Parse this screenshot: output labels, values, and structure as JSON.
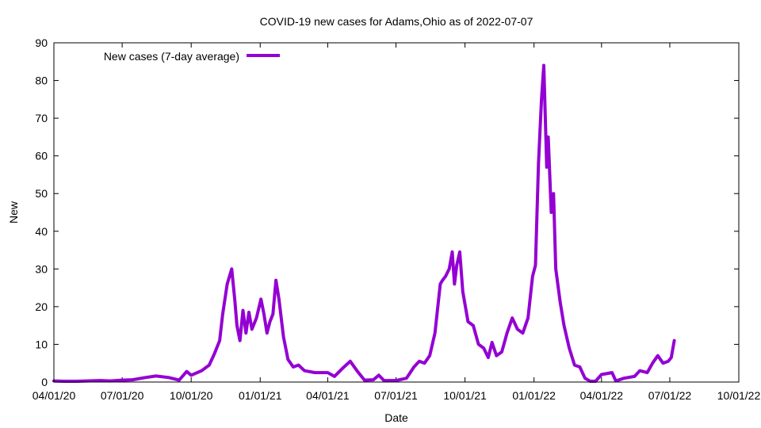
{
  "chart_data": {
    "type": "line",
    "title": "COVID-19 new cases for Adams,Ohio as of 2022-07-07",
    "xlabel": "Date",
    "ylabel": "New",
    "xlim": [
      "2020-04-01",
      "2022-10-01"
    ],
    "ylim": [
      0,
      90
    ],
    "x_ticks": [
      "2020-04-01",
      "2020-07-01",
      "2020-10-01",
      "2021-01-01",
      "2021-04-01",
      "2021-07-01",
      "2021-10-01",
      "2022-01-01",
      "2022-04-01",
      "2022-07-01",
      "2022-10-01"
    ],
    "x_tick_labels": [
      "04/01/20",
      "07/01/20",
      "10/01/20",
      "01/01/21",
      "04/01/21",
      "07/01/21",
      "10/01/21",
      "01/01/22",
      "04/01/22",
      "07/01/22",
      "10/01/22"
    ],
    "y_ticks": [
      0,
      10,
      20,
      30,
      40,
      50,
      60,
      70,
      80,
      90
    ],
    "y_tick_labels": [
      "0",
      "10",
      "20",
      "30",
      "40",
      "50",
      "60",
      "70",
      "80",
      "90"
    ],
    "grid": false,
    "legend_position": "top-left",
    "series": [
      {
        "name": "New cases (7-day average)",
        "color": "#9400d3",
        "points": [
          [
            "2020-04-01",
            0.3
          ],
          [
            "2020-04-15",
            0.2
          ],
          [
            "2020-05-01",
            0.2
          ],
          [
            "2020-05-15",
            0.3
          ],
          [
            "2020-06-01",
            0.4
          ],
          [
            "2020-06-15",
            0.3
          ],
          [
            "2020-07-01",
            0.5
          ],
          [
            "2020-07-15",
            0.6
          ],
          [
            "2020-08-01",
            1.2
          ],
          [
            "2020-08-15",
            1.6
          ],
          [
            "2020-09-01",
            1.2
          ],
          [
            "2020-09-15",
            0.5
          ],
          [
            "2020-09-25",
            2.8
          ],
          [
            "2020-10-01",
            1.8
          ],
          [
            "2020-10-15",
            3.0
          ],
          [
            "2020-10-25",
            4.5
          ],
          [
            "2020-11-01",
            7.5
          ],
          [
            "2020-11-08",
            11.0
          ],
          [
            "2020-11-12",
            18.0
          ],
          [
            "2020-11-18",
            26.0
          ],
          [
            "2020-11-24",
            30.0
          ],
          [
            "2020-11-28",
            22.0
          ],
          [
            "2020-12-01",
            15.0
          ],
          [
            "2020-12-05",
            11.0
          ],
          [
            "2020-12-09",
            19.0
          ],
          [
            "2020-12-13",
            13.0
          ],
          [
            "2020-12-17",
            18.5
          ],
          [
            "2020-12-21",
            14.0
          ],
          [
            "2020-12-27",
            17.0
          ],
          [
            "2021-01-02",
            22.0
          ],
          [
            "2021-01-06",
            18.0
          ],
          [
            "2021-01-10",
            13.0
          ],
          [
            "2021-01-14",
            16.0
          ],
          [
            "2021-01-18",
            18.0
          ],
          [
            "2021-01-22",
            27.0
          ],
          [
            "2021-01-26",
            22.0
          ],
          [
            "2021-02-01",
            12.0
          ],
          [
            "2021-02-07",
            6.0
          ],
          [
            "2021-02-14",
            4.0
          ],
          [
            "2021-02-21",
            4.5
          ],
          [
            "2021-03-01",
            3.0
          ],
          [
            "2021-03-15",
            2.5
          ],
          [
            "2021-04-01",
            2.5
          ],
          [
            "2021-04-10",
            1.5
          ],
          [
            "2021-04-20",
            3.5
          ],
          [
            "2021-05-01",
            5.5
          ],
          [
            "2021-05-10",
            3.0
          ],
          [
            "2021-05-20",
            0.5
          ],
          [
            "2021-06-01",
            0.6
          ],
          [
            "2021-06-08",
            1.8
          ],
          [
            "2021-06-15",
            0.4
          ],
          [
            "2021-07-01",
            0.4
          ],
          [
            "2021-07-15",
            1.0
          ],
          [
            "2021-07-25",
            4.0
          ],
          [
            "2021-08-01",
            5.5
          ],
          [
            "2021-08-08",
            5.0
          ],
          [
            "2021-08-15",
            7.0
          ],
          [
            "2021-08-22",
            13.0
          ],
          [
            "2021-08-29",
            26.0
          ],
          [
            "2021-09-01",
            27.0
          ],
          [
            "2021-09-05",
            28.0
          ],
          [
            "2021-09-10",
            30.0
          ],
          [
            "2021-09-14",
            34.5
          ],
          [
            "2021-09-17",
            26.0
          ],
          [
            "2021-09-20",
            31.0
          ],
          [
            "2021-09-24",
            34.5
          ],
          [
            "2021-09-28",
            24.0
          ],
          [
            "2021-10-05",
            16.0
          ],
          [
            "2021-10-12",
            15.0
          ],
          [
            "2021-10-19",
            10.0
          ],
          [
            "2021-10-26",
            9.0
          ],
          [
            "2021-11-01",
            6.5
          ],
          [
            "2021-11-06",
            10.5
          ],
          [
            "2021-11-12",
            7.0
          ],
          [
            "2021-11-19",
            8.0
          ],
          [
            "2021-11-26",
            13.0
          ],
          [
            "2021-12-03",
            17.0
          ],
          [
            "2021-12-10",
            14.0
          ],
          [
            "2021-12-17",
            13.0
          ],
          [
            "2021-12-24",
            17.0
          ],
          [
            "2021-12-30",
            28.0
          ],
          [
            "2022-01-03",
            31.0
          ],
          [
            "2022-01-07",
            58.0
          ],
          [
            "2022-01-11",
            75.0
          ],
          [
            "2022-01-14",
            84.0
          ],
          [
            "2022-01-18",
            57.0
          ],
          [
            "2022-01-20",
            65.0
          ],
          [
            "2022-01-24",
            45.0
          ],
          [
            "2022-01-27",
            50.0
          ],
          [
            "2022-01-30",
            30.0
          ],
          [
            "2022-02-05",
            21.0
          ],
          [
            "2022-02-10",
            15.0
          ],
          [
            "2022-02-17",
            9.0
          ],
          [
            "2022-02-24",
            4.5
          ],
          [
            "2022-03-03",
            4.0
          ],
          [
            "2022-03-10",
            1.0
          ],
          [
            "2022-03-17",
            0.2
          ],
          [
            "2022-03-24",
            0.2
          ],
          [
            "2022-04-01",
            2.0
          ],
          [
            "2022-04-15",
            2.5
          ],
          [
            "2022-04-20",
            0.3
          ],
          [
            "2022-05-01",
            1.0
          ],
          [
            "2022-05-15",
            1.5
          ],
          [
            "2022-05-22",
            3.0
          ],
          [
            "2022-06-01",
            2.5
          ],
          [
            "2022-06-08",
            5.0
          ],
          [
            "2022-06-15",
            7.0
          ],
          [
            "2022-06-22",
            5.0
          ],
          [
            "2022-06-29",
            5.5
          ],
          [
            "2022-07-03",
            6.5
          ],
          [
            "2022-07-07",
            11.0
          ]
        ]
      }
    ]
  }
}
